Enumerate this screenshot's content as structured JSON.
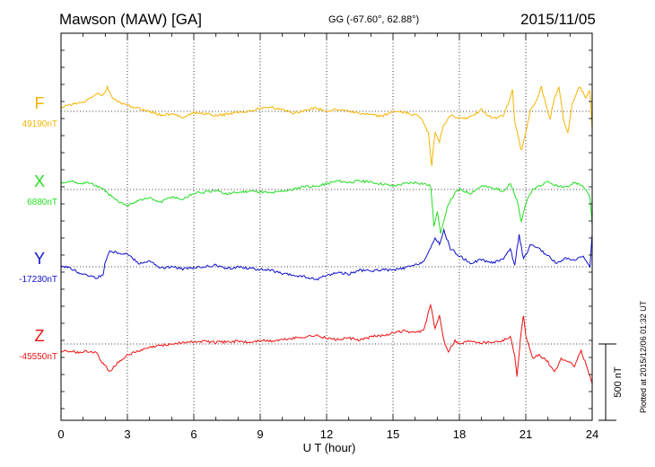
{
  "header": {
    "station": "Mawson (MAW)  [GA]",
    "coords": "GG (-67.60°,  62.88°)",
    "date": "2015/11/05"
  },
  "footer": {
    "plotted": "Plotted at 2015/12/06 01:32 UT"
  },
  "chart_data": {
    "type": "line",
    "title": "Mawson (MAW)  [GA]",
    "xlabel": "U T (hour)",
    "xlim": [
      0,
      24
    ],
    "xticks": [
      "0",
      "3",
      "6",
      "9",
      "12",
      "15",
      "18",
      "21",
      "24"
    ],
    "grid": true,
    "scale_bar": {
      "label": "500 nT",
      "value_nT": 500
    },
    "colors": {
      "F": "#f5b400",
      "X": "#22dd22",
      "Y": "#1010cc",
      "Z": "#ee1111"
    },
    "series": [
      {
        "name": "F",
        "baseline_label": "49190nT",
        "baseline_nT": 49190,
        "points": [
          [
            0,
            0.05
          ],
          [
            0.5,
            0.1
          ],
          [
            1.0,
            0.12
          ],
          [
            1.3,
            0.18
          ],
          [
            1.6,
            0.25
          ],
          [
            1.9,
            0.22
          ],
          [
            2.1,
            0.33
          ],
          [
            2.3,
            0.2
          ],
          [
            2.6,
            0.13
          ],
          [
            3.0,
            0.08
          ],
          [
            3.5,
            0.04
          ],
          [
            4.0,
            0.0
          ],
          [
            4.5,
            -0.05
          ],
          [
            5.0,
            -0.04
          ],
          [
            5.5,
            -0.08
          ],
          [
            6.0,
            -0.02
          ],
          [
            6.5,
            -0.03
          ],
          [
            7.0,
            -0.06
          ],
          [
            7.5,
            -0.04
          ],
          [
            8.0,
            -0.01
          ],
          [
            8.5,
            0.0
          ],
          [
            9.0,
            0.04
          ],
          [
            9.5,
            0.06
          ],
          [
            10.0,
            0.02
          ],
          [
            10.5,
            -0.02
          ],
          [
            11.0,
            0.01
          ],
          [
            11.5,
            0.05
          ],
          [
            12.0,
            0.0
          ],
          [
            12.5,
            0.03
          ],
          [
            13.0,
            0.01
          ],
          [
            13.5,
            -0.03
          ],
          [
            14.0,
            -0.05
          ],
          [
            14.5,
            -0.07
          ],
          [
            15.0,
            0.0
          ],
          [
            15.5,
            -0.02
          ],
          [
            16.0,
            -0.05
          ],
          [
            16.3,
            -0.1
          ],
          [
            16.6,
            -0.3
          ],
          [
            16.75,
            -0.75
          ],
          [
            16.9,
            -0.28
          ],
          [
            17.1,
            -0.42
          ],
          [
            17.3,
            -0.18
          ],
          [
            17.6,
            -0.06
          ],
          [
            18.0,
            -0.1
          ],
          [
            18.5,
            -0.08
          ],
          [
            19.0,
            0.02
          ],
          [
            19.5,
            -0.1
          ],
          [
            20.0,
            -0.05
          ],
          [
            20.2,
            0.1
          ],
          [
            20.4,
            0.3
          ],
          [
            20.5,
            -0.15
          ],
          [
            20.7,
            -0.4
          ],
          [
            20.8,
            -0.55
          ],
          [
            21.0,
            -0.3
          ],
          [
            21.2,
            0.0
          ],
          [
            21.5,
            0.15
          ],
          [
            21.7,
            0.35
          ],
          [
            21.9,
            0.1
          ],
          [
            22.1,
            -0.1
          ],
          [
            22.3,
            0.2
          ],
          [
            22.5,
            0.35
          ],
          [
            22.7,
            -0.1
          ],
          [
            22.9,
            -0.3
          ],
          [
            23.1,
            0.1
          ],
          [
            23.4,
            0.35
          ],
          [
            23.7,
            0.2
          ],
          [
            23.9,
            0.3
          ],
          [
            24.0,
            -0.25
          ]
        ]
      },
      {
        "name": "X",
        "baseline_label": "6880nT",
        "baseline_nT": 6880,
        "points": [
          [
            0,
            0.1
          ],
          [
            0.4,
            0.12
          ],
          [
            0.8,
            0.08
          ],
          [
            1.2,
            0.1
          ],
          [
            1.6,
            0.05
          ],
          [
            2.0,
            -0.02
          ],
          [
            2.3,
            -0.1
          ],
          [
            2.6,
            -0.18
          ],
          [
            3.0,
            -0.22
          ],
          [
            3.5,
            -0.15
          ],
          [
            4.0,
            -0.12
          ],
          [
            4.5,
            -0.18
          ],
          [
            5.0,
            -0.1
          ],
          [
            5.5,
            -0.14
          ],
          [
            6.0,
            -0.05
          ],
          [
            6.5,
            -0.04
          ],
          [
            7.0,
            -0.02
          ],
          [
            7.5,
            -0.06
          ],
          [
            8.0,
            -0.04
          ],
          [
            8.5,
            -0.02
          ],
          [
            9.0,
            -0.03
          ],
          [
            9.5,
            -0.05
          ],
          [
            10.0,
            -0.02
          ],
          [
            10.5,
            0.0
          ],
          [
            11.0,
            0.05
          ],
          [
            11.5,
            0.04
          ],
          [
            12.0,
            0.08
          ],
          [
            12.5,
            0.12
          ],
          [
            13.0,
            0.1
          ],
          [
            13.5,
            0.12
          ],
          [
            14.0,
            0.1
          ],
          [
            14.5,
            0.08
          ],
          [
            15.0,
            0.05
          ],
          [
            15.5,
            0.08
          ],
          [
            16.0,
            0.1
          ],
          [
            16.4,
            0.08
          ],
          [
            16.7,
            0.05
          ],
          [
            16.85,
            -0.5
          ],
          [
            17.0,
            -0.3
          ],
          [
            17.15,
            -0.6
          ],
          [
            17.3,
            -0.45
          ],
          [
            17.5,
            -0.2
          ],
          [
            17.8,
            -0.05
          ],
          [
            18.0,
            0.0
          ],
          [
            18.5,
            -0.05
          ],
          [
            19.0,
            0.05
          ],
          [
            19.5,
            0.02
          ],
          [
            20.0,
            -0.02
          ],
          [
            20.3,
            0.08
          ],
          [
            20.6,
            -0.15
          ],
          [
            20.8,
            -0.45
          ],
          [
            21.0,
            -0.2
          ],
          [
            21.3,
            0.0
          ],
          [
            21.6,
            0.05
          ],
          [
            22.0,
            0.1
          ],
          [
            22.4,
            0.05
          ],
          [
            22.8,
            0.02
          ],
          [
            23.2,
            0.1
          ],
          [
            23.6,
            0.05
          ],
          [
            23.9,
            -0.1
          ],
          [
            24.0,
            -0.5
          ]
        ]
      },
      {
        "name": "Y",
        "baseline_label": "-17230nT",
        "baseline_nT": -17230,
        "points": [
          [
            0,
            0.02
          ],
          [
            0.4,
            -0.02
          ],
          [
            0.8,
            -0.08
          ],
          [
            1.2,
            -0.12
          ],
          [
            1.6,
            -0.15
          ],
          [
            1.9,
            -0.12
          ],
          [
            2.0,
            0.08
          ],
          [
            2.2,
            0.22
          ],
          [
            2.5,
            0.2
          ],
          [
            3.0,
            0.18
          ],
          [
            3.5,
            0.05
          ],
          [
            4.0,
            0.08
          ],
          [
            4.5,
            -0.02
          ],
          [
            5.0,
            0.0
          ],
          [
            5.5,
            -0.03
          ],
          [
            6.0,
            -0.02
          ],
          [
            6.5,
            0.0
          ],
          [
            7.0,
            0.02
          ],
          [
            7.5,
            -0.03
          ],
          [
            8.0,
            0.0
          ],
          [
            8.5,
            -0.02
          ],
          [
            9.0,
            -0.04
          ],
          [
            9.5,
            -0.05
          ],
          [
            10.0,
            -0.1
          ],
          [
            10.5,
            -0.12
          ],
          [
            11.0,
            -0.14
          ],
          [
            11.5,
            -0.18
          ],
          [
            12.0,
            -0.12
          ],
          [
            12.5,
            -0.08
          ],
          [
            13.0,
            -0.1
          ],
          [
            13.5,
            -0.05
          ],
          [
            14.0,
            -0.06
          ],
          [
            14.5,
            -0.04
          ],
          [
            15.0,
            -0.05
          ],
          [
            15.5,
            -0.02
          ],
          [
            16.0,
            0.02
          ],
          [
            16.4,
            0.08
          ],
          [
            16.7,
            0.25
          ],
          [
            16.9,
            0.4
          ],
          [
            17.1,
            0.32
          ],
          [
            17.3,
            0.5
          ],
          [
            17.6,
            0.25
          ],
          [
            18.0,
            0.15
          ],
          [
            18.5,
            0.05
          ],
          [
            19.0,
            0.1
          ],
          [
            19.5,
            0.05
          ],
          [
            20.0,
            0.12
          ],
          [
            20.3,
            0.25
          ],
          [
            20.5,
            0.02
          ],
          [
            20.7,
            0.45
          ],
          [
            20.9,
            0.1
          ],
          [
            21.2,
            0.3
          ],
          [
            21.6,
            0.25
          ],
          [
            22.0,
            0.15
          ],
          [
            22.4,
            0.05
          ],
          [
            22.8,
            0.12
          ],
          [
            23.2,
            0.08
          ],
          [
            23.6,
            0.15
          ],
          [
            23.9,
            0.0
          ],
          [
            24.0,
            0.45
          ]
        ]
      },
      {
        "name": "Z",
        "baseline_label": "-45550nT",
        "baseline_nT": -45550,
        "points": [
          [
            0,
            -0.1
          ],
          [
            0.4,
            -0.1
          ],
          [
            0.8,
            -0.12
          ],
          [
            1.2,
            -0.1
          ],
          [
            1.6,
            -0.12
          ],
          [
            1.8,
            -0.25
          ],
          [
            2.0,
            -0.3
          ],
          [
            2.2,
            -0.38
          ],
          [
            2.5,
            -0.28
          ],
          [
            3.0,
            -0.15
          ],
          [
            3.5,
            -0.1
          ],
          [
            4.0,
            -0.05
          ],
          [
            4.5,
            -0.02
          ],
          [
            5.0,
            0.0
          ],
          [
            5.5,
            0.02
          ],
          [
            6.0,
            0.03
          ],
          [
            6.5,
            0.04
          ],
          [
            7.0,
            0.02
          ],
          [
            7.5,
            0.03
          ],
          [
            8.0,
            0.04
          ],
          [
            8.5,
            0.02
          ],
          [
            9.0,
            0.05
          ],
          [
            9.5,
            0.04
          ],
          [
            10.0,
            0.06
          ],
          [
            10.5,
            0.08
          ],
          [
            11.0,
            0.1
          ],
          [
            11.5,
            0.12
          ],
          [
            12.0,
            0.08
          ],
          [
            12.5,
            0.06
          ],
          [
            13.0,
            0.08
          ],
          [
            13.5,
            0.05
          ],
          [
            14.0,
            0.1
          ],
          [
            14.5,
            0.12
          ],
          [
            15.0,
            0.15
          ],
          [
            15.5,
            0.18
          ],
          [
            16.0,
            0.15
          ],
          [
            16.4,
            0.2
          ],
          [
            16.7,
            0.55
          ],
          [
            16.9,
            0.2
          ],
          [
            17.1,
            0.4
          ],
          [
            17.3,
            0.05
          ],
          [
            17.5,
            -0.1
          ],
          [
            17.8,
            0.05
          ],
          [
            18.0,
            0.0
          ],
          [
            18.5,
            0.05
          ],
          [
            19.0,
            0.02
          ],
          [
            19.5,
            0.03
          ],
          [
            20.0,
            0.05
          ],
          [
            20.3,
            0.1
          ],
          [
            20.5,
            -0.15
          ],
          [
            20.6,
            -0.45
          ],
          [
            20.8,
            0.2
          ],
          [
            20.9,
            0.4
          ],
          [
            21.0,
            0.1
          ],
          [
            21.3,
            -0.2
          ],
          [
            21.6,
            -0.15
          ],
          [
            22.0,
            -0.25
          ],
          [
            22.3,
            -0.4
          ],
          [
            22.6,
            -0.2
          ],
          [
            22.9,
            -0.25
          ],
          [
            23.2,
            -0.3
          ],
          [
            23.5,
            -0.1
          ],
          [
            23.8,
            -0.35
          ],
          [
            24.0,
            -0.55
          ]
        ]
      }
    ]
  }
}
